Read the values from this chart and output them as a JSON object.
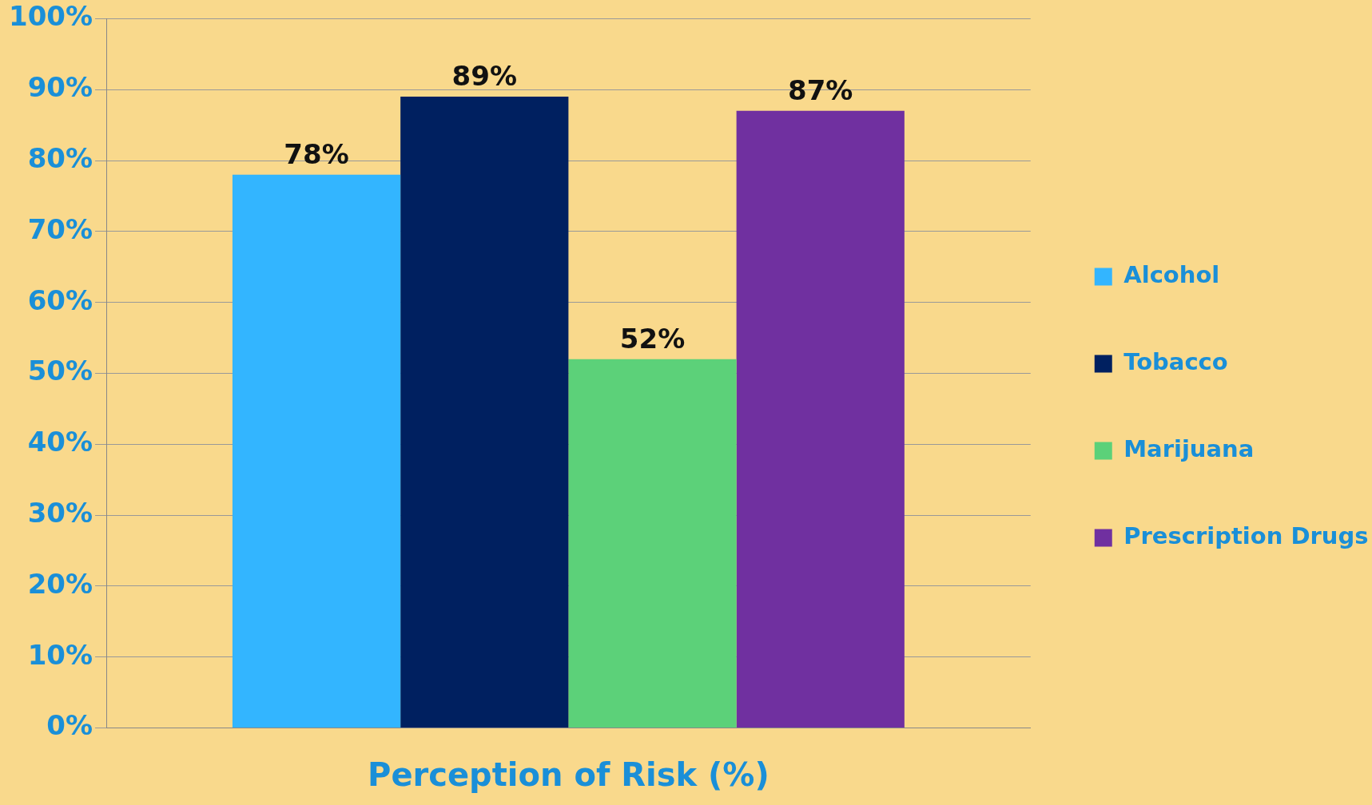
{
  "chart_data": {
    "type": "bar",
    "xlabel": "Perception of Risk (%)",
    "categories": [
      null
    ],
    "series": [
      {
        "name": "Alcohol",
        "color": "#33b5ff",
        "values": [
          78
        ],
        "value_labels": [
          "78%"
        ]
      },
      {
        "name": "Tobacco",
        "color": "#002060",
        "values": [
          89
        ],
        "value_labels": [
          "89%"
        ]
      },
      {
        "name": "Marijuana",
        "color": "#5cd179",
        "values": [
          52
        ],
        "value_labels": [
          "52%"
        ]
      },
      {
        "name": "Prescription Drugs",
        "color": "#7030a0",
        "values": [
          87
        ],
        "value_labels": [
          "87%"
        ]
      }
    ],
    "ylim": [
      0,
      100
    ],
    "yticks": [
      {
        "value": 0,
        "label": "0%"
      },
      {
        "value": 10,
        "label": "10%"
      },
      {
        "value": 20,
        "label": "20%"
      },
      {
        "value": 30,
        "label": "30%"
      },
      {
        "value": 40,
        "label": "40%"
      },
      {
        "value": 50,
        "label": "50%"
      },
      {
        "value": 60,
        "label": "60%"
      },
      {
        "value": 70,
        "label": "70%"
      },
      {
        "value": 80,
        "label": "80%"
      },
      {
        "value": 90,
        "label": "90%"
      },
      {
        "value": 100,
        "label": "100%"
      }
    ],
    "grid": "y",
    "legend": "right"
  }
}
